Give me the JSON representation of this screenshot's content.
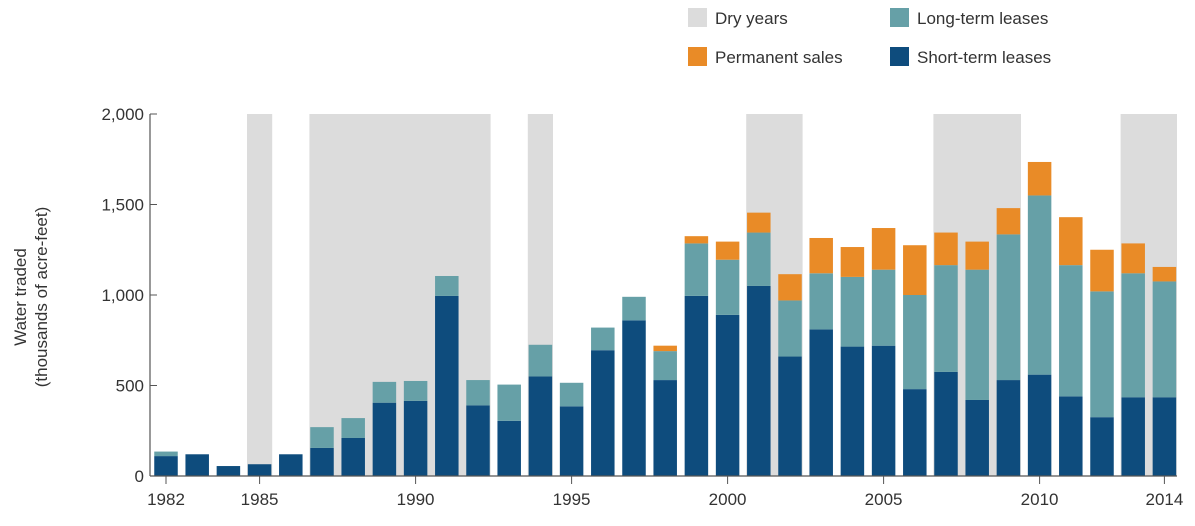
{
  "chart_data": {
    "type": "bar",
    "stacked": true,
    "ylabel": [
      "Water traded",
      "(thousands of acre-feet)"
    ],
    "ylim": [
      0,
      2000
    ],
    "yticks": [
      0,
      500,
      1000,
      1500,
      2000
    ],
    "ytick_labels": [
      "0",
      "500",
      "1,000",
      "1,500",
      "2,000"
    ],
    "xtick_years": [
      1982,
      1985,
      1990,
      1995,
      2000,
      2005,
      2010,
      2014
    ],
    "xtick_labels": [
      "1982",
      "1985",
      "1990",
      "1995",
      "2000",
      "2005",
      "2010",
      "2014"
    ],
    "categories": [
      1982,
      1983,
      1984,
      1985,
      1986,
      1987,
      1988,
      1989,
      1990,
      1991,
      1992,
      1993,
      1994,
      1995,
      1996,
      1997,
      1998,
      1999,
      2000,
      2001,
      2002,
      2003,
      2004,
      2005,
      2006,
      2007,
      2008,
      2009,
      2010,
      2011,
      2012,
      2013,
      2014
    ],
    "dry_years": [
      [
        1985,
        1985
      ],
      [
        1987,
        1992
      ],
      [
        1994,
        1994
      ],
      [
        2001,
        2002
      ],
      [
        2007,
        2009
      ],
      [
        2013,
        2014
      ]
    ],
    "series": [
      {
        "name": "Short-term leases",
        "color": "#0e4c7d",
        "values": [
          110,
          120,
          55,
          65,
          120,
          155,
          210,
          405,
          415,
          995,
          390,
          305,
          550,
          385,
          695,
          860,
          530,
          995,
          890,
          1050,
          660,
          810,
          715,
          720,
          480,
          575,
          420,
          530,
          560,
          440,
          325,
          435,
          435
        ]
      },
      {
        "name": "Long-term leases",
        "color": "#66a0a7",
        "values": [
          25,
          0,
          0,
          0,
          0,
          115,
          110,
          115,
          110,
          110,
          140,
          200,
          175,
          130,
          125,
          130,
          160,
          290,
          305,
          295,
          310,
          310,
          385,
          420,
          520,
          590,
          720,
          805,
          990,
          725,
          695,
          685,
          640
        ]
      },
      {
        "name": "Permanent sales",
        "color": "#e98b27",
        "values": [
          0,
          0,
          0,
          0,
          0,
          0,
          0,
          0,
          0,
          0,
          0,
          0,
          0,
          0,
          0,
          0,
          30,
          40,
          100,
          110,
          145,
          195,
          165,
          230,
          275,
          180,
          155,
          145,
          185,
          265,
          230,
          165,
          80
        ]
      }
    ],
    "legend": {
      "placement": "top-right",
      "items": [
        {
          "label": "Dry years",
          "color": "#dcdcdc"
        },
        {
          "label": "Long-term leases",
          "color": "#66a0a7"
        },
        {
          "label": "Permanent sales",
          "color": "#e98b27"
        },
        {
          "label": "Short-term leases",
          "color": "#0e4c7d"
        }
      ]
    },
    "grid": false
  }
}
